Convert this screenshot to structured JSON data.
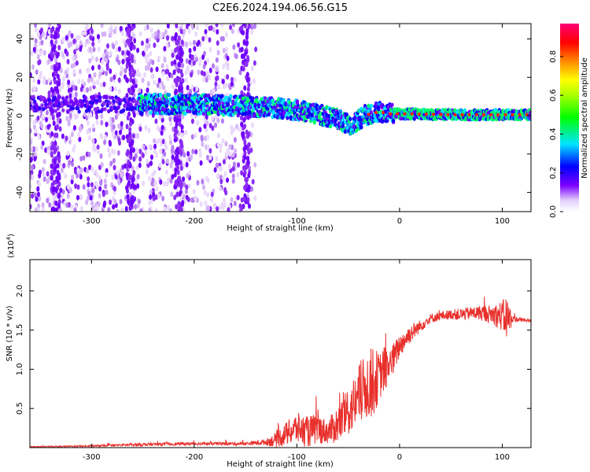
{
  "chart_data": [
    {
      "type": "heatmap",
      "title": "C2E6.2024.194.06.56.G15",
      "xlabel": "Height of straight line (km)",
      "ylabel": "Frequency (Hz)",
      "xlim": [
        -360,
        128
      ],
      "ylim": [
        -50,
        48
      ],
      "xticks": [
        -300,
        -200,
        -100,
        0,
        100
      ],
      "yticks": [
        -40,
        -20,
        0,
        20,
        40
      ],
      "xtick_labels": [
        "-300",
        "-200",
        "-100",
        "0",
        "100"
      ],
      "ytick_labels": [
        "-40",
        "-20",
        "0",
        "20",
        "40"
      ],
      "colorbar": {
        "label": "Normalized spectral amplitude",
        "range": [
          0.0,
          0.97
        ],
        "ticks": [
          0.0,
          0.2,
          0.4,
          0.6,
          0.8
        ],
        "tick_labels": [
          "0.0",
          "0.2",
          "0.4",
          "0.6",
          "0.8"
        ],
        "colors": [
          "#f0e6fa",
          "#c9a6f5",
          "#7b00ff",
          "#0000ff",
          "#00e5ff",
          "#00ff00",
          "#ffff00",
          "#ff8800",
          "#ff0000",
          "#ff0077"
        ]
      },
      "ridge": {
        "x": [
          -250,
          -200,
          -150,
          -120,
          -100,
          -80,
          -60,
          -45,
          -35,
          -20,
          -10,
          0,
          50,
          128
        ],
        "y": [
          6,
          6,
          5,
          4,
          3,
          1,
          -2,
          -5,
          0,
          2,
          1,
          1,
          0.5,
          0.5
        ]
      },
      "noise_x_range": [
        -360,
        -140
      ],
      "grid": false
    },
    {
      "type": "line",
      "title": "",
      "xlabel": "Height of straight line (km)",
      "ylabel": "SNR (10 * v/v)",
      "scale_label": "(x10",
      "scale_exp": "4",
      "scale_close": ")",
      "xlim": [
        -360,
        128
      ],
      "ylim": [
        0,
        2.4
      ],
      "xticks": [
        -300,
        -200,
        -100,
        0,
        100
      ],
      "yticks": [
        0.5,
        1.0,
        1.5,
        2.0
      ],
      "xtick_labels": [
        "-300",
        "-200",
        "-100",
        "0",
        "100"
      ],
      "ytick_labels": [
        "0.5",
        "1.0",
        "1.5",
        "2.0"
      ],
      "series": [
        {
          "color": "#e8302c",
          "x": [
            -360,
            -300,
            -250,
            -200,
            -150,
            -130,
            -120,
            -110,
            -100,
            -90,
            -80,
            -70,
            -60,
            -50,
            -45,
            -40,
            -35,
            -30,
            -25,
            -20,
            -15,
            -10,
            -5,
            0,
            10,
            20,
            30,
            40,
            50,
            60,
            70,
            80,
            90,
            100,
            105,
            110,
            128
          ],
          "y": [
            0.01,
            0.02,
            0.04,
            0.05,
            0.05,
            0.07,
            0.1,
            0.18,
            0.25,
            0.2,
            0.24,
            0.2,
            0.3,
            0.45,
            0.55,
            0.65,
            0.75,
            0.8,
            0.85,
            0.9,
            1.0,
            1.05,
            1.15,
            1.3,
            1.45,
            1.55,
            1.65,
            1.68,
            1.7,
            1.7,
            1.72,
            1.72,
            1.7,
            1.68,
            1.65,
            1.64,
            1.62
          ],
          "noise": [
            0.005,
            0.01,
            0.02,
            0.02,
            0.02,
            0.04,
            0.1,
            0.15,
            0.2,
            0.2,
            0.2,
            0.15,
            0.25,
            0.3,
            0.35,
            0.4,
            0.4,
            0.45,
            0.45,
            0.3,
            0.3,
            0.25,
            0.2,
            0.15,
            0.12,
            0.08,
            0.06,
            0.06,
            0.06,
            0.08,
            0.08,
            0.1,
            0.12,
            0.2,
            0.3,
            0.04,
            0.02
          ]
        }
      ],
      "grid": false
    }
  ]
}
